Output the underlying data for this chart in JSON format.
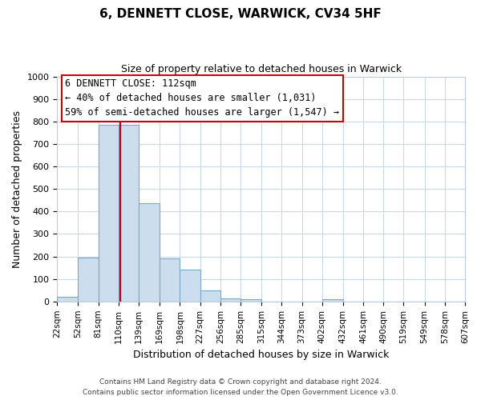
{
  "title": "6, DENNETT CLOSE, WARWICK, CV34 5HF",
  "subtitle": "Size of property relative to detached houses in Warwick",
  "xlabel": "Distribution of detached houses by size in Warwick",
  "ylabel": "Number of detached properties",
  "bar_color": "#ccdded",
  "bar_edge_color": "#7aaac8",
  "vline_x": 112,
  "vline_color": "#cc0000",
  "bin_edges": [
    22,
    52,
    81,
    110,
    139,
    169,
    198,
    227,
    256,
    285,
    315,
    344,
    373,
    402,
    432,
    461,
    490,
    519,
    549,
    578,
    607
  ],
  "bar_heights": [
    20,
    195,
    785,
    785,
    438,
    193,
    140,
    50,
    15,
    10,
    0,
    0,
    0,
    10,
    0,
    0,
    0,
    0,
    0,
    0
  ],
  "tick_labels": [
    "22sqm",
    "52sqm",
    "81sqm",
    "110sqm",
    "139sqm",
    "169sqm",
    "198sqm",
    "227sqm",
    "256sqm",
    "285sqm",
    "315sqm",
    "344sqm",
    "373sqm",
    "402sqm",
    "432sqm",
    "461sqm",
    "490sqm",
    "519sqm",
    "549sqm",
    "578sqm",
    "607sqm"
  ],
  "ylim": [
    0,
    1000
  ],
  "yticks": [
    0,
    100,
    200,
    300,
    400,
    500,
    600,
    700,
    800,
    900,
    1000
  ],
  "annotation_title": "6 DENNETT CLOSE: 112sqm",
  "annotation_line1": "← 40% of detached houses are smaller (1,031)",
  "annotation_line2": "59% of semi-detached houses are larger (1,547) →",
  "annotation_box_color": "#ffffff",
  "annotation_box_edge": "#cc0000",
  "footer1": "Contains HM Land Registry data © Crown copyright and database right 2024.",
  "footer2": "Contains public sector information licensed under the Open Government Licence v3.0.",
  "background_color": "#ffffff",
  "grid_color": "#c8d8e8",
  "figsize": [
    6.0,
    5.0
  ],
  "dpi": 100
}
